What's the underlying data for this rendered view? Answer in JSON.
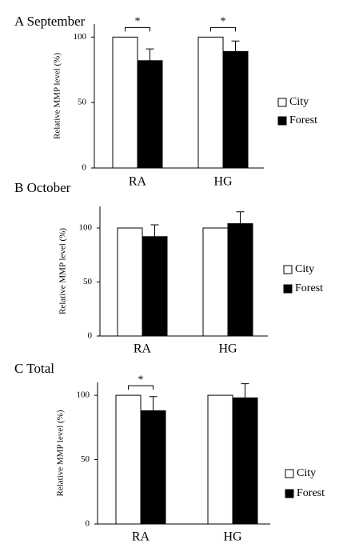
{
  "chart_data": [
    {
      "type": "bar",
      "title": "A September",
      "ylabel": "Relative MMP level (%)",
      "categories": [
        "RA",
        "HG"
      ],
      "series": [
        {
          "name": "City",
          "color": "#ffffff",
          "values": [
            100,
            100
          ]
        },
        {
          "name": "Forest",
          "color": "#000000",
          "values": [
            82,
            89
          ],
          "errors": [
            9,
            8
          ]
        }
      ],
      "significance_labels": [
        "*",
        "*"
      ],
      "ylim": [
        0,
        110
      ],
      "yticks": [
        0,
        50,
        100
      ]
    },
    {
      "type": "bar",
      "title": "B October",
      "ylabel": "Relative MMP level (%)",
      "categories": [
        "RA",
        "HG"
      ],
      "series": [
        {
          "name": "City",
          "color": "#ffffff",
          "values": [
            100,
            100
          ]
        },
        {
          "name": "Forest",
          "color": "#000000",
          "values": [
            92,
            104
          ],
          "errors": [
            11,
            11
          ]
        }
      ],
      "significance_labels": [
        null,
        null
      ],
      "ylim": [
        0,
        120
      ],
      "yticks": [
        0,
        50,
        100
      ]
    },
    {
      "type": "bar",
      "title": "C Total",
      "ylabel": "Relative MMP level (%)",
      "categories": [
        "RA",
        "HG"
      ],
      "series": [
        {
          "name": "City",
          "color": "#ffffff",
          "values": [
            100,
            100
          ]
        },
        {
          "name": "Forest",
          "color": "#000000",
          "values": [
            88,
            98
          ],
          "errors": [
            11,
            11
          ]
        }
      ],
      "significance_labels": [
        "*",
        null
      ],
      "ylim": [
        0,
        110
      ],
      "yticks": [
        0,
        50,
        100
      ]
    }
  ]
}
